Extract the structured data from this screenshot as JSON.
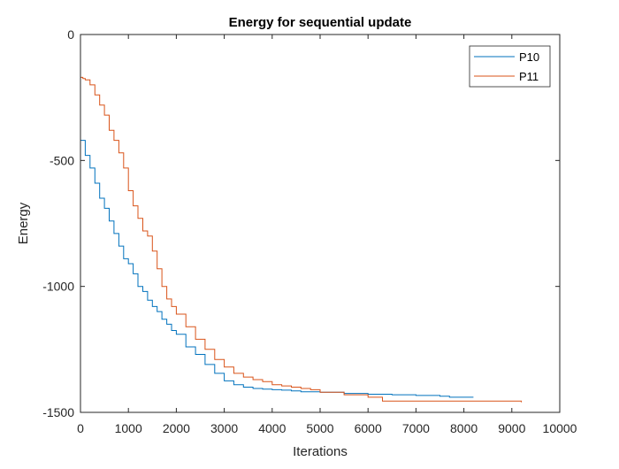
{
  "chart_data": {
    "type": "line",
    "title": "Energy for sequential update",
    "xlabel": "Iterations",
    "ylabel": "Energy",
    "xlim": [
      0,
      10000
    ],
    "ylim": [
      -1500,
      0
    ],
    "xticks": [
      "0",
      "1000",
      "2000",
      "3000",
      "4000",
      "5000",
      "6000",
      "7000",
      "8000",
      "9000",
      "10000"
    ],
    "yticks": [
      "0",
      "-500",
      "-1000",
      "-1500"
    ],
    "xtick_values": [
      0,
      1000,
      2000,
      3000,
      4000,
      5000,
      6000,
      7000,
      8000,
      9000,
      10000
    ],
    "ytick_values": [
      0,
      -500,
      -1000,
      -1500
    ],
    "grid": false,
    "legend_position": "top-right",
    "series": [
      {
        "name": "P10",
        "color": "#0072BD",
        "x": [
          0,
          0,
          100,
          200,
          300,
          400,
          500,
          600,
          700,
          800,
          900,
          1000,
          1100,
          1200,
          1300,
          1400,
          1500,
          1600,
          1700,
          1800,
          1900,
          2000,
          2200,
          2400,
          2600,
          2800,
          3000,
          3200,
          3400,
          3600,
          3800,
          4000,
          4200,
          4400,
          4600,
          4800,
          5000,
          5500,
          6000,
          6500,
          7000,
          7500,
          7700,
          8000,
          8200
        ],
        "y": [
          0,
          -420,
          -480,
          -530,
          -590,
          -650,
          -690,
          -740,
          -790,
          -840,
          -890,
          -910,
          -950,
          -1000,
          -1020,
          -1055,
          -1080,
          -1100,
          -1130,
          -1150,
          -1175,
          -1190,
          -1240,
          -1270,
          -1310,
          -1345,
          -1375,
          -1390,
          -1400,
          -1405,
          -1408,
          -1410,
          -1412,
          -1415,
          -1418,
          -1418,
          -1420,
          -1425,
          -1428,
          -1430,
          -1433,
          -1436,
          -1440,
          -1440,
          -1440
        ]
      },
      {
        "name": "P11",
        "color": "#D95319",
        "x": [
          0,
          0,
          50,
          100,
          200,
          300,
          400,
          500,
          600,
          700,
          800,
          900,
          1000,
          1100,
          1200,
          1300,
          1400,
          1500,
          1600,
          1700,
          1800,
          1900,
          2000,
          2200,
          2400,
          2600,
          2800,
          3000,
          3200,
          3400,
          3600,
          3800,
          4000,
          4200,
          4400,
          4600,
          4800,
          5000,
          5500,
          6000,
          6300,
          6500,
          7000,
          7500,
          8000,
          8500,
          9000,
          9200
        ],
        "y": [
          0,
          -170,
          -175,
          -180,
          -200,
          -240,
          -280,
          -320,
          -380,
          -420,
          -470,
          -530,
          -620,
          -680,
          -730,
          -780,
          -800,
          -860,
          -930,
          -1000,
          -1050,
          -1080,
          -1110,
          -1160,
          -1210,
          -1250,
          -1290,
          -1320,
          -1345,
          -1360,
          -1370,
          -1378,
          -1390,
          -1395,
          -1400,
          -1405,
          -1410,
          -1420,
          -1430,
          -1440,
          -1455,
          -1455,
          -1455,
          -1455,
          -1455,
          -1455,
          -1455,
          -1460
        ]
      }
    ]
  }
}
